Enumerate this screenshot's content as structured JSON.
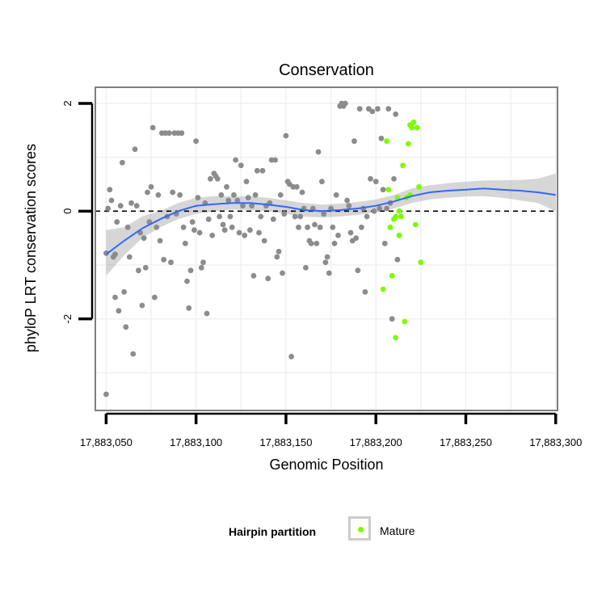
{
  "chart_data": {
    "type": "scatter",
    "title": "Conservation",
    "xlabel": "Genomic Position",
    "ylabel": "phyloP LRT conservation scores",
    "xlim": [
      17883044,
      17883301
    ],
    "ylim": [
      -3.7,
      2.3
    ],
    "x_ticks": [
      17883050,
      17883100,
      17883150,
      17883200,
      17883250,
      17883300
    ],
    "x_tick_labels": [
      "17,883,050",
      "17,883,100",
      "17,883,150",
      "17,883,200",
      "17,883,250",
      "17,883,300"
    ],
    "y_ticks": [
      2,
      0,
      -2
    ],
    "y_tick_labels": [
      "2",
      "0",
      "-2"
    ],
    "reference_line": 0,
    "grid": true,
    "legend": {
      "title": "Hairpin partition",
      "entries": [
        {
          "label": "Mature",
          "color": "#7CFC00"
        }
      ],
      "position": "bottom"
    },
    "series": [
      {
        "name": "Other",
        "color": "#8c8c8c",
        "points": [
          [
            17883050,
            -0.78
          ],
          [
            17883050,
            -3.4
          ],
          [
            17883051,
            0.05
          ],
          [
            17883052,
            0.4
          ],
          [
            17883053,
            0.2
          ],
          [
            17883054,
            -0.85
          ],
          [
            17883055,
            -0.8
          ],
          [
            17883055,
            -1.6
          ],
          [
            17883056,
            -0.2
          ],
          [
            17883057,
            -1.85
          ],
          [
            17883058,
            0.1
          ],
          [
            17883059,
            0.9
          ],
          [
            17883060,
            -1.5
          ],
          [
            17883061,
            -2.15
          ],
          [
            17883062,
            -0.3
          ],
          [
            17883063,
            -0.85
          ],
          [
            17883064,
            0.15
          ],
          [
            17883065,
            -2.65
          ],
          [
            17883066,
            1.15
          ],
          [
            17883067,
            0.1
          ],
          [
            17883068,
            -1.1
          ],
          [
            17883069,
            -0.4
          ],
          [
            17883070,
            -1.75
          ],
          [
            17883071,
            -0.5
          ],
          [
            17883072,
            -1.05
          ],
          [
            17883073,
            0.35
          ],
          [
            17883074,
            -0.2
          ],
          [
            17883075,
            0.45
          ],
          [
            17883076,
            1.55
          ],
          [
            17883077,
            -1.6
          ],
          [
            17883078,
            -0.3
          ],
          [
            17883079,
            0.3
          ],
          [
            17883080,
            -0.55
          ],
          [
            17883081,
            1.45
          ],
          [
            17883082,
            -0.9
          ],
          [
            17883083,
            1.45
          ],
          [
            17883084,
            -0.1
          ],
          [
            17883085,
            1.45
          ],
          [
            17883086,
            -0.95
          ],
          [
            17883087,
            0.35
          ],
          [
            17883088,
            1.45
          ],
          [
            17883089,
            -0.05
          ],
          [
            17883090,
            1.45
          ],
          [
            17883091,
            0.3
          ],
          [
            17883092,
            1.45
          ],
          [
            17883093,
            -0.3
          ],
          [
            17883094,
            -0.6
          ],
          [
            17883095,
            -1.3
          ],
          [
            17883096,
            -1.8
          ],
          [
            17883097,
            -1.1
          ],
          [
            17883098,
            -0.2
          ],
          [
            17883099,
            -0.35
          ],
          [
            17883100,
            1.3
          ],
          [
            17883101,
            0.25
          ],
          [
            17883102,
            -0.4
          ],
          [
            17883103,
            -1.05
          ],
          [
            17883104,
            -0.95
          ],
          [
            17883105,
            0.15
          ],
          [
            17883106,
            -1.9
          ],
          [
            17883107,
            -0.15
          ],
          [
            17883108,
            0.6
          ],
          [
            17883109,
            -0.45
          ],
          [
            17883110,
            0.7
          ],
          [
            17883111,
            0.65
          ],
          [
            17883112,
            0.6
          ],
          [
            17883113,
            -0.1
          ],
          [
            17883114,
            0.3
          ],
          [
            17883115,
            -0.25
          ],
          [
            17883116,
            -0.35
          ],
          [
            17883117,
            0.45
          ],
          [
            17883118,
            0.2
          ],
          [
            17883119,
            -0.1
          ],
          [
            17883120,
            -0.3
          ],
          [
            17883121,
            0.3
          ],
          [
            17883122,
            0.95
          ],
          [
            17883123,
            0.2
          ],
          [
            17883124,
            -0.4
          ],
          [
            17883125,
            0.85
          ],
          [
            17883126,
            0.1
          ],
          [
            17883127,
            -0.45
          ],
          [
            17883128,
            0.55
          ],
          [
            17883129,
            0.25
          ],
          [
            17883130,
            -0.35
          ],
          [
            17883131,
            0.1
          ],
          [
            17883132,
            -1.2
          ],
          [
            17883133,
            0.3
          ],
          [
            17883134,
            0.75
          ],
          [
            17883135,
            -0.4
          ],
          [
            17883136,
            -0.1
          ],
          [
            17883137,
            0.75
          ],
          [
            17883138,
            -0.55
          ],
          [
            17883139,
            0.1
          ],
          [
            17883140,
            -1.25
          ],
          [
            17883141,
            0.15
          ],
          [
            17883142,
            0.95
          ],
          [
            17883143,
            -0.15
          ],
          [
            17883144,
            0.95
          ],
          [
            17883145,
            -0.85
          ],
          [
            17883146,
            -0.75
          ],
          [
            17883147,
            0.3
          ],
          [
            17883148,
            -1.15
          ],
          [
            17883149,
            -0.05
          ],
          [
            17883150,
            1.4
          ],
          [
            17883151,
            0.55
          ],
          [
            17883152,
            0.5
          ],
          [
            17883153,
            -2.7
          ],
          [
            17883154,
            0.45
          ],
          [
            17883155,
            -0.1
          ],
          [
            17883156,
            0.45
          ],
          [
            17883157,
            -0.3
          ],
          [
            17883158,
            -0.1
          ],
          [
            17883159,
            0.35
          ],
          [
            17883160,
            0.05
          ],
          [
            17883161,
            -1.05
          ],
          [
            17883162,
            -0.3
          ],
          [
            17883163,
            -0.55
          ],
          [
            17883164,
            -0.6
          ],
          [
            17883165,
            0.05
          ],
          [
            17883166,
            -0.25
          ],
          [
            17883167,
            -0.6
          ],
          [
            17883168,
            1.1
          ],
          [
            17883169,
            -0.3
          ],
          [
            17883170,
            0.55
          ],
          [
            17883171,
            -0.05
          ],
          [
            17883172,
            -0.95
          ],
          [
            17883173,
            -0.85
          ],
          [
            17883174,
            -1.15
          ],
          [
            17883175,
            0.05
          ],
          [
            17883176,
            -0.3
          ],
          [
            17883177,
            -0.6
          ],
          [
            17883178,
            0.3
          ],
          [
            17883179,
            -0.45
          ],
          [
            17883180,
            1.95
          ],
          [
            17883181,
            2.0
          ],
          [
            17883182,
            1.95
          ],
          [
            17883183,
            2.0
          ],
          [
            17883184,
            0.2
          ],
          [
            17883185,
            0.1
          ],
          [
            17883186,
            -0.4
          ],
          [
            17883187,
            -0.55
          ],
          [
            17883188,
            1.3
          ],
          [
            17883189,
            -0.5
          ],
          [
            17883190,
            -1.1
          ],
          [
            17883191,
            1.9
          ],
          [
            17883192,
            -0.3
          ],
          [
            17883193,
            0.05
          ],
          [
            17883194,
            -1.5
          ],
          [
            17883195,
            -0.1
          ],
          [
            17883196,
            1.9
          ],
          [
            17883197,
            0.6
          ],
          [
            17883198,
            1.85
          ],
          [
            17883199,
            0.0
          ],
          [
            17883200,
            0.55
          ],
          [
            17883201,
            1.9
          ],
          [
            17883202,
            0.05
          ],
          [
            17883203,
            1.35
          ],
          [
            17883204,
            0.4
          ],
          [
            17883205,
            -0.6
          ],
          [
            17883206,
            0.05
          ],
          [
            17883207,
            1.9
          ],
          [
            17883208,
            0.15
          ],
          [
            17883209,
            -2.0
          ],
          [
            17883210,
            0.6
          ],
          [
            17883211,
            1.8
          ],
          [
            17883212,
            -0.9
          ],
          [
            17883213,
            -0.45
          ]
        ]
      },
      {
        "name": "Mature",
        "color": "#7CFC00",
        "points": [
          [
            17883206,
            1.3
          ],
          [
            17883207,
            0.4
          ],
          [
            17883208,
            -0.3
          ],
          [
            17883209,
            -1.2
          ],
          [
            17883210,
            -0.15
          ],
          [
            17883211,
            -2.35
          ],
          [
            17883212,
            0.25
          ],
          [
            17883213,
            0.0
          ],
          [
            17883214,
            -0.1
          ],
          [
            17883215,
            0.85
          ],
          [
            17883216,
            -2.05
          ],
          [
            17883217,
            0.25
          ],
          [
            17883218,
            1.25
          ],
          [
            17883219,
            0.3
          ],
          [
            17883220,
            1.55
          ],
          [
            17883221,
            1.65
          ],
          [
            17883222,
            -0.25
          ],
          [
            17883223,
            1.55
          ],
          [
            17883224,
            0.45
          ],
          [
            17883225,
            -0.95
          ],
          [
            17883204,
            -1.45
          ],
          [
            17883211,
            -0.1
          ],
          [
            17883213,
            -0.45
          ],
          [
            17883219,
            1.6
          ]
        ]
      }
    ],
    "smooth_fit": {
      "name": "loess",
      "color": "#3366FF",
      "ci_color": "#999999",
      "points": [
        [
          17883050,
          -0.8,
          -1.2,
          -0.35
        ],
        [
          17883060,
          -0.55,
          -0.82,
          -0.3
        ],
        [
          17883070,
          -0.32,
          -0.5,
          -0.1
        ],
        [
          17883080,
          -0.15,
          -0.3,
          0.0
        ],
        [
          17883090,
          0.0,
          -0.15,
          0.15
        ],
        [
          17883100,
          0.1,
          -0.05,
          0.25
        ],
        [
          17883110,
          0.13,
          0.0,
          0.28
        ],
        [
          17883120,
          0.15,
          0.03,
          0.28
        ],
        [
          17883130,
          0.15,
          0.02,
          0.28
        ],
        [
          17883140,
          0.12,
          0.0,
          0.25
        ],
        [
          17883150,
          0.08,
          -0.05,
          0.2
        ],
        [
          17883160,
          0.02,
          -0.1,
          0.15
        ],
        [
          17883170,
          0.0,
          -0.12,
          0.12
        ],
        [
          17883180,
          0.02,
          -0.1,
          0.14
        ],
        [
          17883190,
          0.05,
          -0.07,
          0.17
        ],
        [
          17883200,
          0.1,
          -0.02,
          0.22
        ],
        [
          17883210,
          0.18,
          0.05,
          0.3
        ],
        [
          17883220,
          0.28,
          0.15,
          0.42
        ],
        [
          17883230,
          0.35,
          0.22,
          0.48
        ],
        [
          17883240,
          0.38,
          0.25,
          0.52
        ],
        [
          17883250,
          0.4,
          0.27,
          0.55
        ],
        [
          17883260,
          0.42,
          0.28,
          0.57
        ],
        [
          17883270,
          0.4,
          0.25,
          0.57
        ],
        [
          17883280,
          0.38,
          0.2,
          0.58
        ],
        [
          17883290,
          0.35,
          0.15,
          0.6
        ],
        [
          17883300,
          0.3,
          0.0,
          0.7
        ]
      ]
    }
  }
}
